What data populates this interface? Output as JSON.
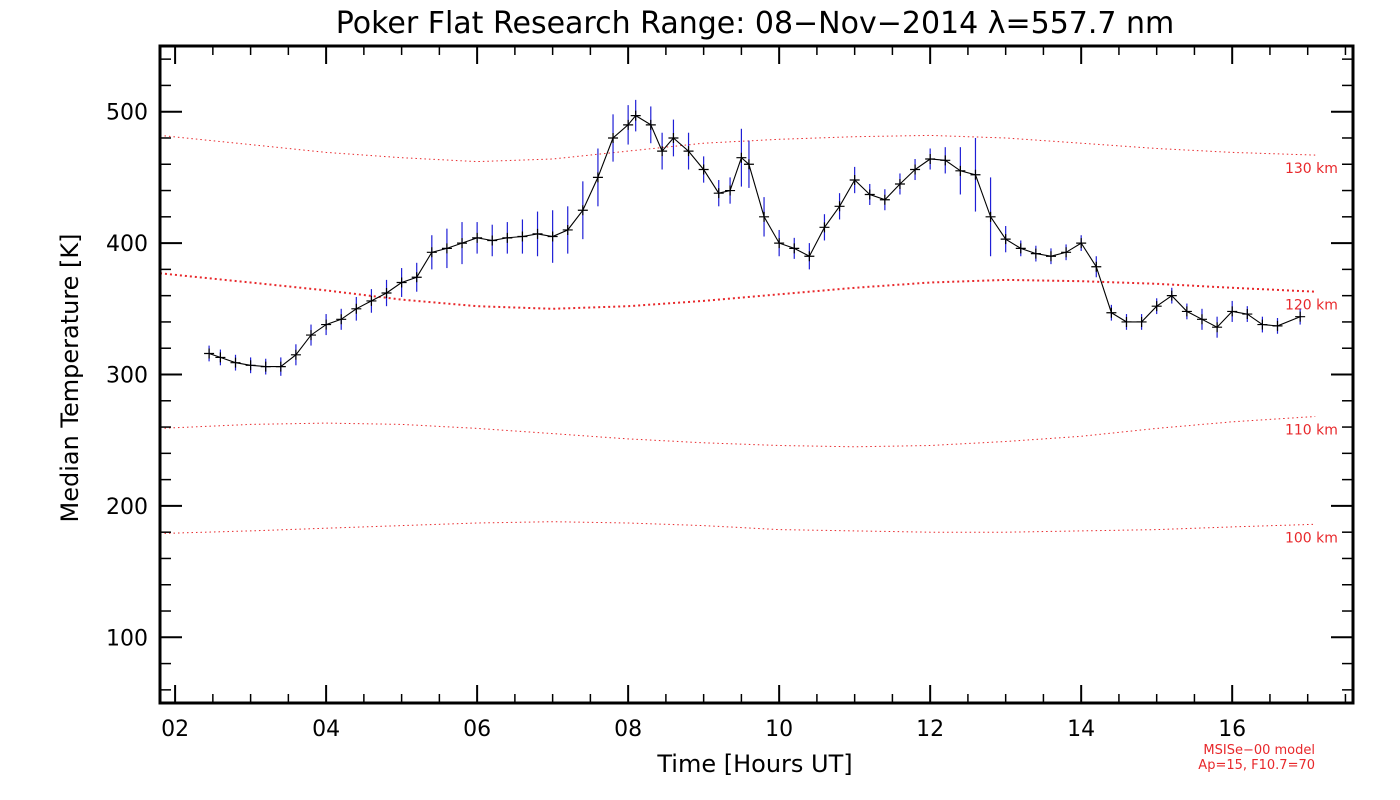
{
  "chart_data": {
    "type": "line",
    "title": "Poker Flat Research Range: 08−Nov−2014 λ=557.7 nm",
    "xlabel": "Time [Hours UT]",
    "ylabel": "Median Temperature [K]",
    "xlim": [
      1.8,
      17.6
    ],
    "ylim": [
      50,
      550
    ],
    "x_ticks": [
      {
        "value": 2,
        "label": "02"
      },
      {
        "value": 4,
        "label": "04"
      },
      {
        "value": 6,
        "label": "06"
      },
      {
        "value": 8,
        "label": "08"
      },
      {
        "value": 10,
        "label": "10"
      },
      {
        "value": 12,
        "label": "12"
      },
      {
        "value": 14,
        "label": "14"
      },
      {
        "value": 16,
        "label": "16"
      }
    ],
    "y_ticks": [
      {
        "value": 100,
        "label": "100"
      },
      {
        "value": 200,
        "label": "200"
      },
      {
        "value": 300,
        "label": "300"
      },
      {
        "value": 400,
        "label": "400"
      },
      {
        "value": 500,
        "label": "500"
      }
    ],
    "grid": false,
    "series": [
      {
        "color": "#000000",
        "errorbar_color": "#1f1fd6",
        "marker": "plus",
        "x": [
          2.45,
          2.6,
          2.8,
          3.0,
          3.2,
          3.4,
          3.6,
          3.8,
          4.0,
          4.2,
          4.4,
          4.6,
          4.8,
          5.0,
          5.2,
          5.4,
          5.6,
          5.8,
          6.0,
          6.2,
          6.4,
          6.6,
          6.8,
          7.0,
          7.2,
          7.4,
          7.6,
          7.8,
          8.0,
          8.1,
          8.3,
          8.45,
          8.6,
          8.8,
          9.0,
          9.2,
          9.35,
          9.5,
          9.6,
          9.8,
          10.0,
          10.2,
          10.4,
          10.6,
          10.8,
          11.0,
          11.2,
          11.4,
          11.6,
          11.8,
          12.0,
          12.2,
          12.4,
          12.6,
          12.8,
          13.0,
          13.2,
          13.4,
          13.6,
          13.8,
          14.0,
          14.2,
          14.4,
          14.6,
          14.8,
          15.0,
          15.2,
          15.4,
          15.6,
          15.8,
          16.0,
          16.2,
          16.4,
          16.6,
          16.9
        ],
        "y": [
          316,
          313,
          309,
          307,
          306,
          306,
          315,
          330,
          338,
          342,
          350,
          356,
          362,
          370,
          374,
          393,
          396,
          400,
          404,
          402,
          404,
          405,
          407,
          405,
          410,
          425,
          450,
          480,
          490,
          497,
          490,
          470,
          480,
          470,
          456,
          438,
          440,
          465,
          460,
          420,
          400,
          396,
          390,
          412,
          428,
          448,
          437,
          433,
          445,
          456,
          464,
          463,
          455,
          452,
          420,
          403,
          396,
          392,
          390,
          393,
          400,
          382,
          347,
          340,
          340,
          352,
          360,
          348,
          342,
          336,
          348,
          346,
          338,
          337,
          344
        ],
        "error": [
          6,
          6,
          6,
          6,
          6,
          7,
          8,
          8,
          8,
          8,
          9,
          9,
          10,
          11,
          11,
          13,
          15,
          16,
          12,
          12,
          12,
          13,
          17,
          20,
          18,
          22,
          22,
          18,
          15,
          12,
          14,
          14,
          14,
          14,
          10,
          10,
          10,
          22,
          18,
          15,
          10,
          8,
          10,
          10,
          10,
          10,
          8,
          8,
          8,
          8,
          8,
          10,
          18,
          28,
          30,
          10,
          6,
          6,
          6,
          6,
          6,
          8,
          6,
          6,
          6,
          6,
          6,
          6,
          8,
          8,
          8,
          6,
          6,
          6,
          6
        ]
      }
    ],
    "model_curves": [
      {
        "label": "130 km",
        "color": "#e8282b",
        "x": [
          1.8,
          3,
          4,
          5,
          6,
          7,
          8,
          9,
          10,
          11,
          12,
          13,
          14,
          15,
          16,
          17.1
        ],
        "y": [
          482,
          475,
          469,
          465,
          462,
          464,
          470,
          476,
          479,
          481,
          482,
          480,
          476,
          472,
          469,
          467
        ]
      },
      {
        "label": "120 km",
        "color": "#e8282b",
        "x": [
          1.8,
          3,
          4,
          5,
          6,
          7,
          8,
          9,
          10,
          11,
          12,
          13,
          14,
          15,
          16,
          17.1
        ],
        "y": [
          377,
          370,
          364,
          357,
          352,
          350,
          352,
          356,
          361,
          366,
          370,
          372,
          371,
          369,
          366,
          363
        ]
      },
      {
        "label": "110 km",
        "color": "#e8282b",
        "x": [
          1.8,
          3,
          4,
          5,
          6,
          7,
          8,
          9,
          10,
          11,
          12,
          13,
          14,
          15,
          16,
          17.1
        ],
        "y": [
          259,
          262,
          263,
          262,
          259,
          255,
          251,
          248,
          246,
          245,
          246,
          249,
          253,
          259,
          264,
          268
        ]
      },
      {
        "label": "100 km",
        "color": "#e8282b",
        "x": [
          1.8,
          3,
          4,
          5,
          6,
          7,
          8,
          9,
          10,
          11,
          12,
          13,
          14,
          15,
          16,
          17.1
        ],
        "y": [
          179,
          181,
          183,
          185,
          187,
          188,
          187,
          185,
          182,
          181,
          180,
          180,
          181,
          182,
          184,
          186
        ]
      }
    ],
    "model_note": [
      "MSISe−00 model",
      "Ap=15, F10.7=70"
    ]
  }
}
